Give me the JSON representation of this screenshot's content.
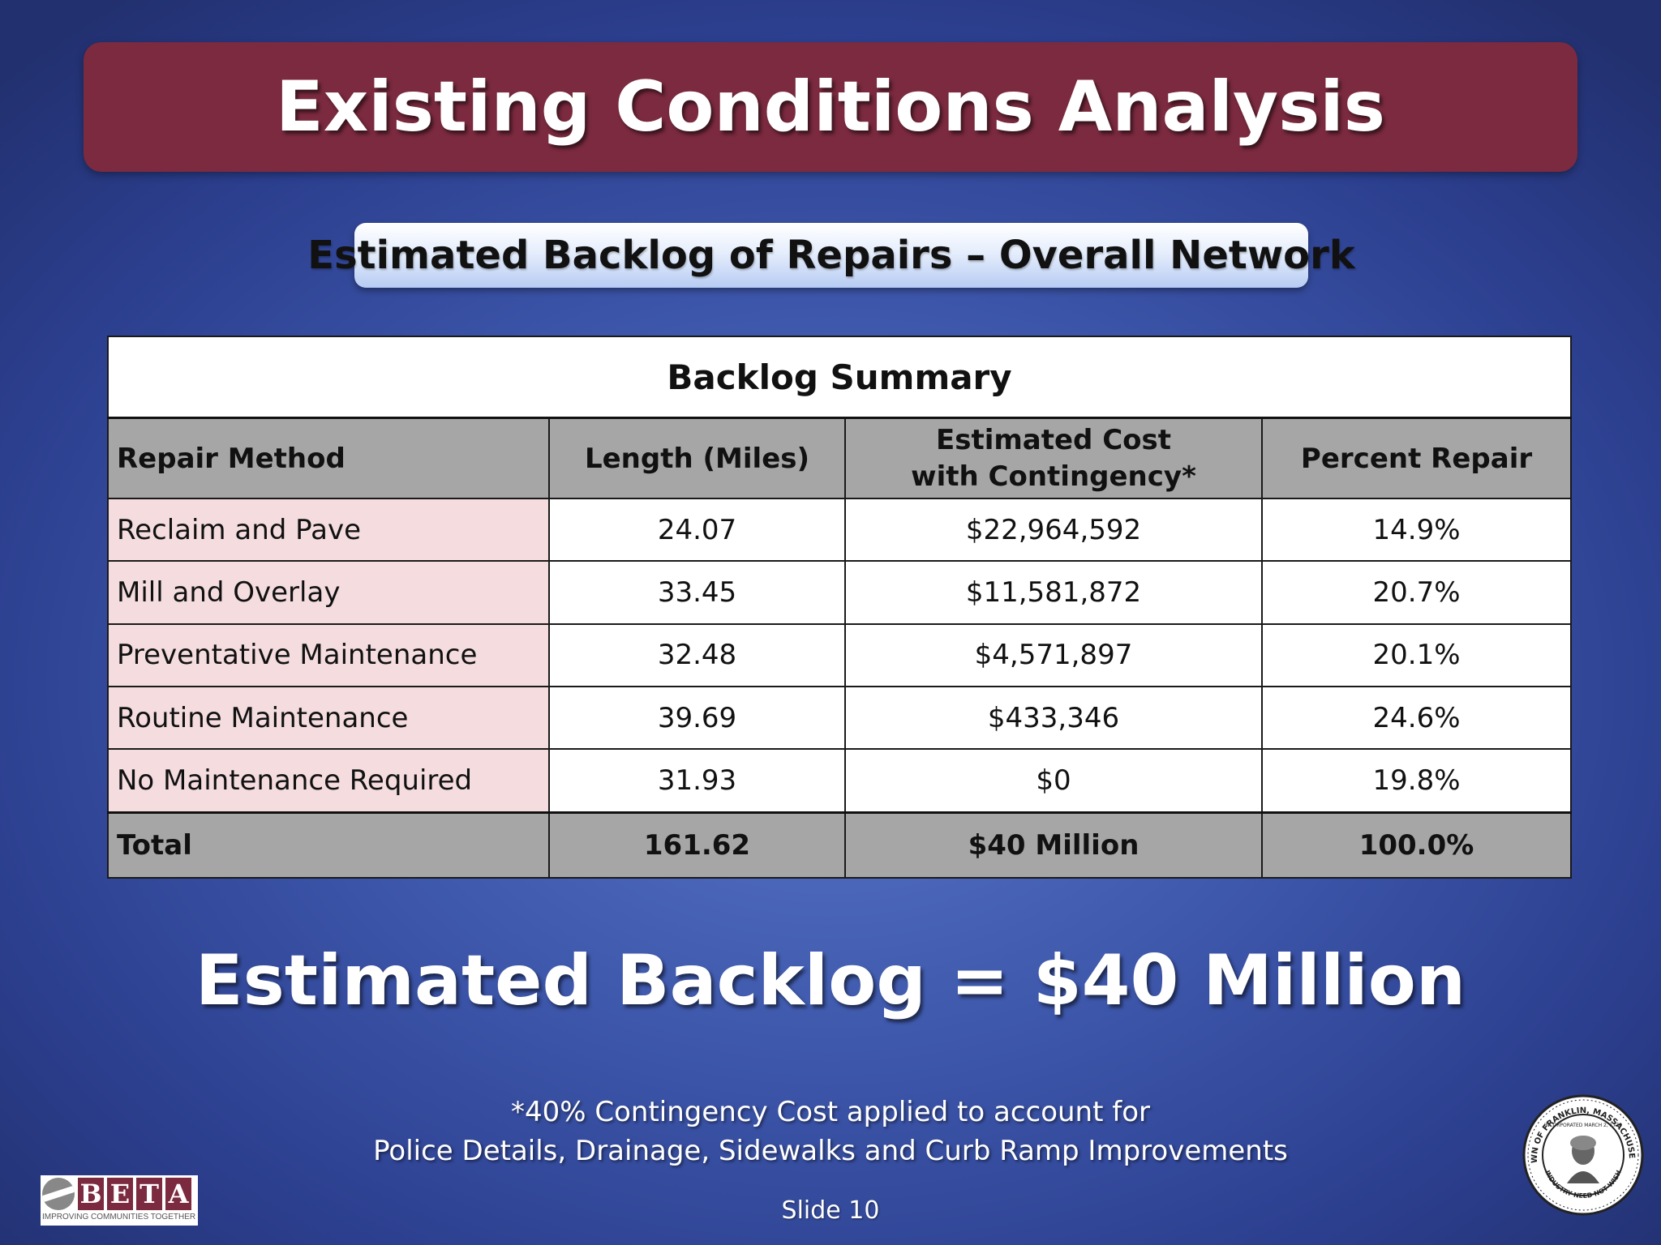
{
  "slide": {
    "title": "Existing Conditions Analysis",
    "subtitle": "Estimated Backlog of Repairs – Overall Network",
    "headline": "Estimated Backlog = $40 Million",
    "footnote_line1": "*40% Contingency Cost applied to account for",
    "footnote_line2": "Police Details, Drainage, Sidewalks and Curb Ramp Improvements",
    "slide_number": "Slide 10"
  },
  "table": {
    "caption": "Backlog Summary",
    "headers": {
      "method": "Repair Method",
      "length": "Length (Miles)",
      "cost_line1": "Estimated Cost",
      "cost_line2": "with Contingency*",
      "percent": "Percent Repair"
    },
    "rows": [
      {
        "method": "Reclaim and Pave",
        "length": "24.07",
        "cost": "$22,964,592",
        "percent": "14.9%"
      },
      {
        "method": "Mill and Overlay",
        "length": "33.45",
        "cost": "$11,581,872",
        "percent": "20.7%"
      },
      {
        "method": "Preventative Maintenance",
        "length": "32.48",
        "cost": "$4,571,897",
        "percent": "20.1%"
      },
      {
        "method": "Routine Maintenance",
        "length": "39.69",
        "cost": "$433,346",
        "percent": "24.6%"
      },
      {
        "method": "No Maintenance Required",
        "length": "31.93",
        "cost": "$0",
        "percent": "19.8%"
      }
    ],
    "total": {
      "method": "Total",
      "length": "161.62",
      "cost": "$40 Million",
      "percent": "100.0%"
    }
  },
  "logo": {
    "letters": [
      "B",
      "E",
      "T",
      "A"
    ],
    "tagline": "IMPROVING COMMUNITIES TOGETHER",
    "brand_color": "#7b2a3f"
  },
  "seal": {
    "top_text": "TOWN OF FRANKLIN, MASSACHUSETTS",
    "inner_text": "INCORPORATED MARCH 2, 1778",
    "bottom_text": "INDUSTRY NEED NOT WISH"
  },
  "colors": {
    "title_bar": "#7b2a3f",
    "header_gray": "#a6a6a6",
    "first_column_pink": "#f4dcdf",
    "background_blue": "#3f59ad"
  }
}
